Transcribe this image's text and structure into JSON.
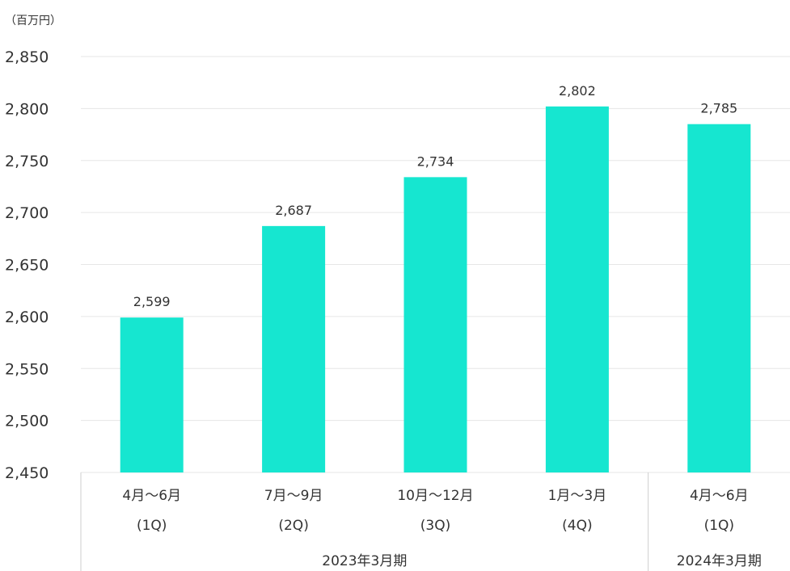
{
  "chart_data": {
    "type": "bar",
    "unit_label": "（百万円）",
    "categories": [
      {
        "line1": "4月〜6月",
        "line2": "(1Q)"
      },
      {
        "line1": "7月〜9月",
        "line2": "(2Q)"
      },
      {
        "line1": "10月〜12月",
        "line2": "(3Q)"
      },
      {
        "line1": "1月〜3月",
        "line2": "(4Q)"
      },
      {
        "line1": "4月〜6月",
        "line2": "(1Q)"
      }
    ],
    "values": [
      2599,
      2687,
      2734,
      2802,
      2785
    ],
    "value_labels": [
      "2,599",
      "2,687",
      "2,734",
      "2,802",
      "2,785"
    ],
    "groups": [
      {
        "label": "2023年3月期",
        "start": 0,
        "end": 3
      },
      {
        "label": "2024年3月期",
        "start": 4,
        "end": 4
      }
    ],
    "ylim": [
      2450,
      2850
    ],
    "yticks": [
      2450,
      2500,
      2550,
      2600,
      2650,
      2700,
      2750,
      2800,
      2850
    ],
    "ytick_labels": [
      "2,450",
      "2,500",
      "2,550",
      "2,600",
      "2,650",
      "2,700",
      "2,750",
      "2,800",
      "2,850"
    ],
    "grid": true,
    "colors": {
      "bar": "#16e6d0",
      "grid": "#e6e6e6",
      "divider": "#cfcfcf",
      "text": "#333333"
    }
  }
}
